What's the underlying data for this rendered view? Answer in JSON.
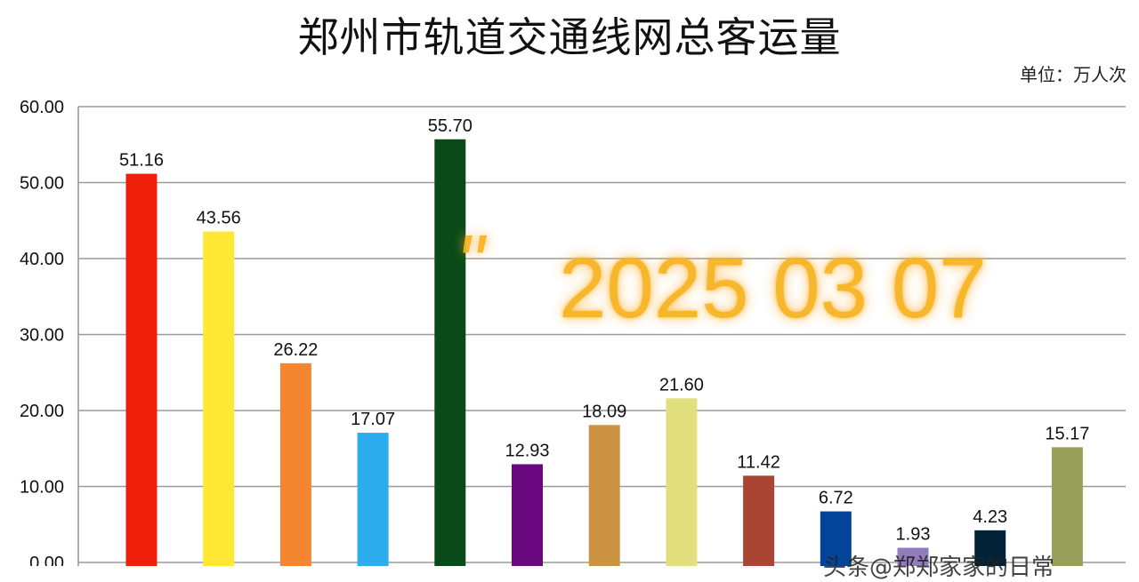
{
  "chart_data": {
    "type": "bar",
    "title": "郑州市轨道交通线网总客运量",
    "unit_label": "单位：万人次",
    "xlabel": "",
    "ylabel": "",
    "ylim": [
      0,
      60
    ],
    "yticks": [
      "0.00",
      "10.00",
      "20.00",
      "30.00",
      "40.00",
      "50.00",
      "60.00"
    ],
    "grid": true,
    "values": [
      51.16,
      43.56,
      26.22,
      17.07,
      55.7,
      12.93,
      18.09,
      21.6,
      11.42,
      6.72,
      1.93,
      4.23,
      15.17
    ],
    "value_labels": [
      "51.16",
      "43.56",
      "26.22",
      "17.07",
      "55.70",
      "12.93",
      "18.09",
      "21.60",
      "11.42",
      "6.72",
      "1.93",
      "4.23",
      "15.17"
    ],
    "colors": [
      "#ee1e0b",
      "#ffe835",
      "#f48631",
      "#2cadee",
      "#0a4a18",
      "#6a0880",
      "#cc9342",
      "#e2e07e",
      "#aa4534",
      "#034498",
      "#937cbc",
      "#012237",
      "#979f5b"
    ]
  },
  "watermark": {
    "quote": "\"",
    "date_text": "2025 03 07"
  },
  "footer": {
    "text": "头条@郑郑家家的日常"
  }
}
